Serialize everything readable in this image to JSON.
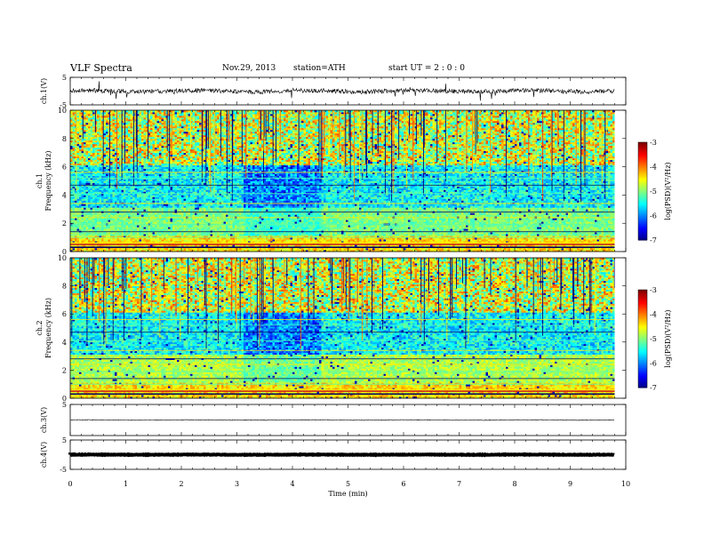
{
  "header": {
    "title": "VLF  Spectra",
    "date": "Nov.29, 2013",
    "station": "station=ATH",
    "start": "start  UT  =    2  : 0   : 0"
  },
  "chart_data": {
    "type": "heatmap",
    "xlabel": "Time  (min)",
    "xlim": [
      0,
      10
    ],
    "xticks": [
      "0",
      "1",
      "2",
      "3",
      "4",
      "5",
      "6",
      "7",
      "8",
      "9",
      "10"
    ],
    "panels": [
      {
        "id": "ch1-waveform",
        "ylabel": "ch.1(V)",
        "ylim": [
          -5,
          5
        ],
        "yticks": [
          "5",
          "-5"
        ]
      },
      {
        "id": "ch1-spectrogram",
        "ylabel": "ch.1\nFrequency  (kHz)",
        "ylim": [
          0,
          10
        ],
        "yticks": [
          "0",
          "2",
          "4",
          "6",
          "8",
          "10"
        ],
        "colorbar": {
          "label": "log(PSD)(V²/Hz)",
          "range": [
            -7,
            -3
          ],
          "ticks": [
            "-3",
            "-4",
            "-5",
            "-6",
            "-7"
          ]
        }
      },
      {
        "id": "ch2-spectrogram",
        "ylabel": "ch.2\nFrequency  (kHz)",
        "ylim": [
          0,
          10
        ],
        "yticks": [
          "0",
          "2",
          "4",
          "6",
          "8",
          "10"
        ],
        "colorbar": {
          "label": "log(PSD)(V²/Hz)",
          "range": [
            -7,
            -3
          ],
          "ticks": [
            "-3",
            "-4",
            "-5",
            "-6",
            "-7"
          ]
        }
      },
      {
        "id": "ch3-waveform",
        "ylabel": "ch.3(V)",
        "ylim": [
          -5,
          5
        ],
        "yticks": [
          "5"
        ]
      },
      {
        "id": "ch4-waveform",
        "ylabel": "ch.4(V)",
        "ylim": [
          -5,
          5
        ],
        "yticks": [
          "5",
          "-5"
        ]
      }
    ],
    "data_end_min": 9.8
  }
}
